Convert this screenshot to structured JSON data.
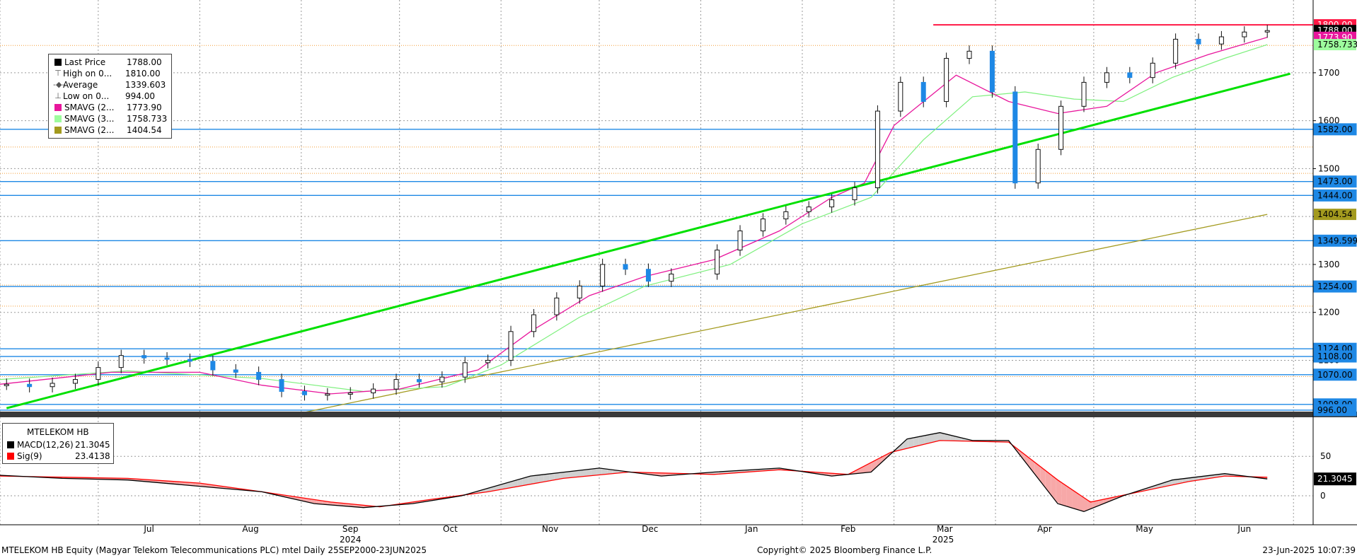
{
  "chart_data": [
    {
      "type": "candlestick",
      "ylim": [
        990,
        1840
      ],
      "y_ticks": [
        1100,
        1200,
        1300,
        1400,
        1500,
        1600,
        1700
      ],
      "x_months": [
        "Jul",
        "Aug",
        "Sep",
        "Oct",
        "Nov",
        "Dec",
        "Jan",
        "Feb",
        "Mar",
        "Apr",
        "May",
        "Jun"
      ],
      "x_years": [
        "2024",
        "2025"
      ],
      "legend": {
        "rows": [
          {
            "key": "last",
            "symbol": "square",
            "color": "#000000",
            "label": "Last Price",
            "value": "1788.00"
          },
          {
            "key": "high",
            "symbol": "high-mark",
            "color": "#666666",
            "label": "High on 0...",
            "value": "1810.00"
          },
          {
            "key": "avg",
            "symbol": "avg-mark",
            "color": "#666666",
            "label": "Average",
            "value": "1339.603"
          },
          {
            "key": "low",
            "symbol": "low-mark",
            "color": "#666666",
            "label": "Low on 0...",
            "value": "994.00"
          },
          {
            "key": "sma20",
            "symbol": "square",
            "color": "#e8169c",
            "label": "SMAVG (2...",
            "value": "1773.90"
          },
          {
            "key": "sma30",
            "symbol": "square",
            "color": "#9dfc9d",
            "label": "SMAVG (3...",
            "value": "1758.733"
          },
          {
            "key": "sma200",
            "symbol": "square",
            "color": "#a39a1e",
            "label": "SMAVG (2...",
            "value": "1404.54"
          }
        ]
      },
      "price_levels": [
        {
          "value": 1800,
          "label": "1800.00",
          "color": "#ff1744",
          "style": "solid"
        },
        {
          "value": 1788,
          "label": "1788.00",
          "color": "#000000",
          "style": "none"
        },
        {
          "value": 1773.9,
          "label": "1773.90",
          "color": "#e8169c",
          "style": "none"
        },
        {
          "value": 1758.733,
          "label": "1758.733",
          "color": "#9dfc9d",
          "style": "none"
        },
        {
          "value": 1582,
          "label": "1582.00",
          "color": "#1e88e5",
          "style": "solid"
        },
        {
          "value": 1473,
          "label": "1473.00",
          "color": "#1e88e5",
          "style": "solid"
        },
        {
          "value": 1444,
          "label": "1444.00",
          "color": "#1e88e5",
          "style": "solid"
        },
        {
          "value": 1404.54,
          "label": "1404.54",
          "color": "#a39a1e",
          "style": "none"
        },
        {
          "value": 1349.599,
          "label": "1349.599",
          "color": "#1e88e5",
          "style": "solid"
        },
        {
          "value": 1254,
          "label": "1254.00",
          "color": "#1e88e5",
          "style": "solid"
        },
        {
          "value": 1124,
          "label": "1124.00",
          "color": "#1e88e5",
          "style": "solid"
        },
        {
          "value": 1108,
          "label": "1108.00",
          "color": "#1e88e5",
          "style": "solid"
        },
        {
          "value": 1070,
          "label": "1070.00",
          "color": "#1e88e5",
          "style": "solid"
        },
        {
          "value": 1008,
          "label": "1008.00",
          "color": "#1e88e5",
          "style": "solid"
        },
        {
          "value": 996,
          "label": "996.00",
          "color": "#1e88e5",
          "style": "solid"
        }
      ],
      "orange_dotted_levels": [
        1757,
        1545,
        1490,
        1257,
        1213,
        1066
      ],
      "trendline": {
        "color": "#00e000",
        "points": [
          [
            "2024-06-03",
            1000
          ],
          [
            "2025-06-30",
            1698
          ]
        ]
      },
      "sma200_points": [
        [
          "2024-09-01",
          990
        ],
        [
          "2025-06-23",
          1404.54
        ]
      ],
      "sma20_points": [
        [
          "2024-06-01",
          1050
        ],
        [
          "2024-07-05",
          1075
        ],
        [
          "2024-08-01",
          1075
        ],
        [
          "2024-08-20",
          1048
        ],
        [
          "2024-09-10",
          1030
        ],
        [
          "2024-10-01",
          1040
        ],
        [
          "2024-10-25",
          1080
        ],
        [
          "2024-11-10",
          1160
        ],
        [
          "2024-11-28",
          1235
        ],
        [
          "2024-12-15",
          1275
        ],
        [
          "2025-01-05",
          1310
        ],
        [
          "2025-01-25",
          1370
        ],
        [
          "2025-02-10",
          1440
        ],
        [
          "2025-02-20",
          1470
        ],
        [
          "2025-03-01",
          1590
        ],
        [
          "2025-03-20",
          1695
        ],
        [
          "2025-04-05",
          1640
        ],
        [
          "2025-04-20",
          1615
        ],
        [
          "2025-05-05",
          1630
        ],
        [
          "2025-05-20",
          1700
        ],
        [
          "2025-06-05",
          1738
        ],
        [
          "2025-06-23",
          1773.9
        ]
      ],
      "sma30_points": [
        [
          "2024-06-01",
          1060
        ],
        [
          "2024-07-10",
          1078
        ],
        [
          "2024-08-20",
          1062
        ],
        [
          "2024-09-20",
          1035
        ],
        [
          "2024-10-15",
          1045
        ],
        [
          "2024-11-01",
          1090
        ],
        [
          "2024-11-25",
          1190
        ],
        [
          "2024-12-15",
          1255
        ],
        [
          "2025-01-10",
          1300
        ],
        [
          "2025-02-01",
          1385
        ],
        [
          "2025-02-22",
          1440
        ],
        [
          "2025-03-10",
          1560
        ],
        [
          "2025-03-25",
          1650
        ],
        [
          "2025-04-10",
          1660
        ],
        [
          "2025-04-25",
          1645
        ],
        [
          "2025-05-10",
          1640
        ],
        [
          "2025-05-25",
          1690
        ],
        [
          "2025-06-10",
          1730
        ],
        [
          "2025-06-23",
          1758.733
        ]
      ],
      "candles": [
        [
          "2024-06-03",
          1050
        ],
        [
          "2024-06-10",
          1045
        ],
        [
          "2024-06-17",
          1052
        ],
        [
          "2024-06-24",
          1060
        ],
        [
          "2024-07-01",
          1085
        ],
        [
          "2024-07-08",
          1110
        ],
        [
          "2024-07-15",
          1105
        ],
        [
          "2024-07-22",
          1102
        ],
        [
          "2024-07-29",
          1098
        ],
        [
          "2024-08-05",
          1080
        ],
        [
          "2024-08-12",
          1075
        ],
        [
          "2024-08-19",
          1060
        ],
        [
          "2024-08-26",
          1035
        ],
        [
          "2024-09-02",
          1028
        ],
        [
          "2024-09-09",
          1030
        ],
        [
          "2024-09-16",
          1032
        ],
        [
          "2024-09-23",
          1040
        ],
        [
          "2024-09-30",
          1060
        ],
        [
          "2024-10-07",
          1055
        ],
        [
          "2024-10-14",
          1065
        ],
        [
          "2024-10-21",
          1095
        ],
        [
          "2024-10-28",
          1100
        ],
        [
          "2024-11-04",
          1160
        ],
        [
          "2024-11-11",
          1195
        ],
        [
          "2024-11-18",
          1230
        ],
        [
          "2024-11-25",
          1255
        ],
        [
          "2024-12-02",
          1300
        ],
        [
          "2024-12-09",
          1290
        ],
        [
          "2024-12-16",
          1265
        ],
        [
          "2024-12-23",
          1280
        ],
        [
          "2025-01-06",
          1330
        ],
        [
          "2025-01-13",
          1370
        ],
        [
          "2025-01-20",
          1395
        ],
        [
          "2025-01-27",
          1410
        ],
        [
          "2025-02-03",
          1420
        ],
        [
          "2025-02-10",
          1435
        ],
        [
          "2025-02-17",
          1460
        ],
        [
          "2025-02-24",
          1620
        ],
        [
          "2025-03-03",
          1680
        ],
        [
          "2025-03-10",
          1640
        ],
        [
          "2025-03-17",
          1730
        ],
        [
          "2025-03-24",
          1745
        ],
        [
          "2025-03-31",
          1660
        ],
        [
          "2025-04-07",
          1470
        ],
        [
          "2025-04-14",
          1540
        ],
        [
          "2025-04-21",
          1630
        ],
        [
          "2025-04-28",
          1680
        ],
        [
          "2025-05-05",
          1700
        ],
        [
          "2025-05-12",
          1690
        ],
        [
          "2025-05-19",
          1720
        ],
        [
          "2025-05-26",
          1770
        ],
        [
          "2025-06-02",
          1760
        ],
        [
          "2025-06-09",
          1775
        ],
        [
          "2025-06-16",
          1785
        ],
        [
          "2025-06-23",
          1788
        ]
      ]
    },
    {
      "type": "line",
      "title": "MTELEKOM HB",
      "ylim": [
        -35,
        95
      ],
      "y_ticks": [
        50,
        0
      ],
      "series": [
        {
          "name": "MACD(12,26)",
          "color": "#000000",
          "value_label": "21.3045",
          "points": [
            [
              "2024-06-01",
              26
            ],
            [
              "2024-06-20",
              22
            ],
            [
              "2024-07-10",
              20
            ],
            [
              "2024-08-01",
              12
            ],
            [
              "2024-08-20",
              5
            ],
            [
              "2024-09-05",
              -10
            ],
            [
              "2024-09-20",
              -15
            ],
            [
              "2024-10-05",
              -10
            ],
            [
              "2024-10-20",
              0
            ],
            [
              "2024-11-10",
              25
            ],
            [
              "2024-12-01",
              35
            ],
            [
              "2024-12-20",
              25
            ],
            [
              "2025-01-05",
              30
            ],
            [
              "2025-01-25",
              35
            ],
            [
              "2025-02-10",
              25
            ],
            [
              "2025-02-22",
              30
            ],
            [
              "2025-03-05",
              72
            ],
            [
              "2025-03-15",
              80
            ],
            [
              "2025-03-25",
              70
            ],
            [
              "2025-04-05",
              70
            ],
            [
              "2025-04-20",
              -10
            ],
            [
              "2025-04-28",
              -20
            ],
            [
              "2025-05-10",
              0
            ],
            [
              "2025-05-25",
              20
            ],
            [
              "2025-06-10",
              28
            ],
            [
              "2025-06-23",
              21.3045
            ]
          ]
        },
        {
          "name": "Sig(9)",
          "color": "#ff0000",
          "value_label": "23.4138",
          "points": [
            [
              "2024-06-01",
              25
            ],
            [
              "2024-07-10",
              22
            ],
            [
              "2024-08-01",
              16
            ],
            [
              "2024-08-20",
              5
            ],
            [
              "2024-09-10",
              -8
            ],
            [
              "2024-09-25",
              -14
            ],
            [
              "2024-10-10",
              -5
            ],
            [
              "2024-10-28",
              5
            ],
            [
              "2024-11-20",
              22
            ],
            [
              "2024-12-10",
              30
            ],
            [
              "2025-01-05",
              27
            ],
            [
              "2025-01-25",
              33
            ],
            [
              "2025-02-15",
              27
            ],
            [
              "2025-02-28",
              55
            ],
            [
              "2025-03-15",
              70
            ],
            [
              "2025-04-05",
              68
            ],
            [
              "2025-04-20",
              20
            ],
            [
              "2025-04-30",
              -8
            ],
            [
              "2025-05-15",
              5
            ],
            [
              "2025-05-30",
              18
            ],
            [
              "2025-06-10",
              25
            ],
            [
              "2025-06-23",
              23.4138
            ]
          ]
        }
      ]
    }
  ],
  "footer": {
    "left": "MTELEKOM HB Equity (Magyar Telekom Telecommunications PLC) mtel  Daily 25SEP2000-23JUN2025",
    "center": "Copyright© 2025 Bloomberg Finance L.P.",
    "right": "23-Jun-2025 10:07:39"
  }
}
